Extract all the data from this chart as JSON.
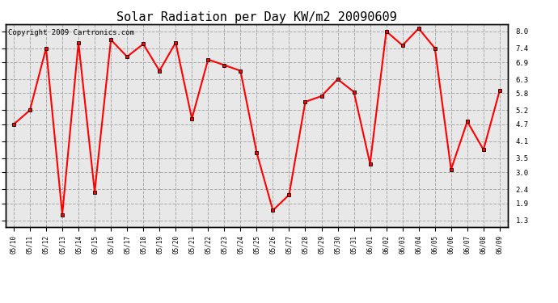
{
  "title": "Solar Radiation per Day KW/m2 20090609",
  "copyright": "Copyright 2009 Cartronics.com",
  "dates": [
    "05/10",
    "05/11",
    "05/12",
    "05/13",
    "05/14",
    "05/15",
    "05/16",
    "05/17",
    "05/18",
    "05/19",
    "05/20",
    "05/21",
    "05/22",
    "05/23",
    "05/24",
    "05/25",
    "05/26",
    "05/27",
    "05/28",
    "05/29",
    "05/30",
    "05/31",
    "06/01",
    "06/02",
    "06/03",
    "06/04",
    "06/05",
    "06/06",
    "06/07",
    "06/08",
    "06/09"
  ],
  "values": [
    4.7,
    5.2,
    7.4,
    1.5,
    7.6,
    2.3,
    7.7,
    7.1,
    7.55,
    6.6,
    7.6,
    4.9,
    7.0,
    6.8,
    6.6,
    3.7,
    1.65,
    2.2,
    5.5,
    5.7,
    6.3,
    5.85,
    3.3,
    8.0,
    7.5,
    8.1,
    7.4,
    3.1,
    4.8,
    3.8,
    5.9
  ],
  "line_color": "#FF0000",
  "marker_color": "#000000",
  "bg_color": "#FFFFFF",
  "plot_bg_color": "#E8E8E8",
  "grid_color": "#AAAAAA",
  "yticks": [
    1.3,
    1.9,
    2.4,
    3.0,
    3.5,
    4.1,
    4.7,
    5.2,
    5.8,
    6.3,
    6.9,
    7.4,
    8.0
  ],
  "ylim": [
    1.05,
    8.25
  ],
  "title_fontsize": 11,
  "copyright_fontsize": 6.5,
  "xtick_fontsize": 5.5,
  "ytick_fontsize": 6.5
}
